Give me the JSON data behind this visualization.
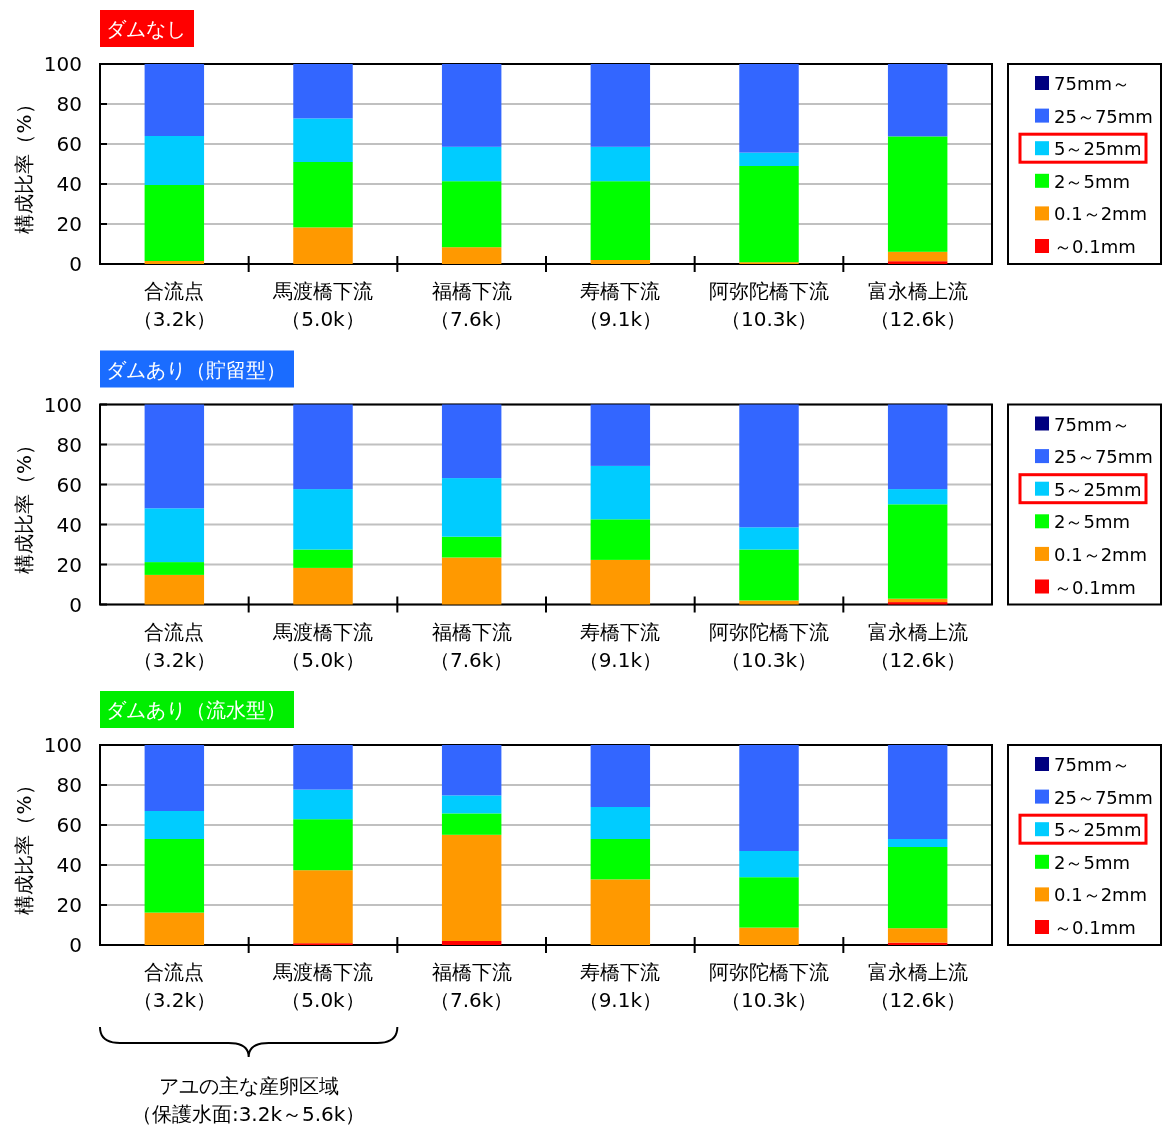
{
  "chart_data": [
    {
      "type": "bar",
      "title": "ダムなし",
      "ylabel": "構成比率（%）",
      "stacked": true,
      "ylim": [
        0,
        100
      ],
      "yticks": [
        0,
        20,
        40,
        60,
        80,
        100
      ],
      "grid": "y",
      "legend": "right",
      "categories": [
        "合流点（3.2k）",
        "馬渡橋下流（5.0k）",
        "福橋下流（7.6k）",
        "寿橋下流（9.1k）",
        "阿弥陀橋下流（10.3k）",
        "富永橋上流（12.6k）"
      ],
      "series": [
        {
          "name": "～0.1mm",
          "color": "#ff0000",
          "values": [
            0,
            0,
            0,
            0,
            0,
            1.4
          ]
        },
        {
          "name": "0.1～2mm",
          "color": "#ff9900",
          "values": [
            1.5,
            18.3,
            8.4,
            2,
            0.9,
            4.7
          ]
        },
        {
          "name": "2～5mm",
          "color": "#00ff00",
          "values": [
            38,
            32.7,
            33,
            39.4,
            48.1,
            57.7
          ]
        },
        {
          "name": "5～25mm",
          "color": "#00ccff",
          "values": [
            24.5,
            21.8,
            17.2,
            17.2,
            6.7,
            0
          ]
        },
        {
          "name": "25～75mm",
          "color": "#3366ff",
          "values": [
            36,
            27.2,
            41.4,
            41.4,
            44.3,
            36.2
          ]
        },
        {
          "name": "75mm～",
          "color": "#000080",
          "values": [
            0,
            0,
            0,
            0,
            0,
            0
          ]
        }
      ]
    },
    {
      "type": "bar",
      "title": "ダムあり（貯留型）",
      "ylabel": "構成比率（%）",
      "stacked": true,
      "ylim": [
        0,
        100
      ],
      "yticks": [
        0,
        20,
        40,
        60,
        80,
        100
      ],
      "grid": "y",
      "legend": "right",
      "categories": [
        "合流点（3.2k）",
        "馬渡橋下流（5.0k）",
        "福橋下流（7.6k）",
        "寿橋下流（9.1k）",
        "阿弥陀橋下流（10.3k）",
        "富永橋上流（12.6k）"
      ],
      "series": [
        {
          "name": "～0.1mm",
          "color": "#ff0000",
          "values": [
            0,
            0,
            0,
            0,
            0,
            1.2
          ]
        },
        {
          "name": "0.1～2mm",
          "color": "#ff9900",
          "values": [
            14.8,
            18.3,
            23.5,
            22.3,
            2,
            1.7
          ]
        },
        {
          "name": "2～5mm",
          "color": "#00ff00",
          "values": [
            6.4,
            9.2,
            10.4,
            20.3,
            25.5,
            47.2
          ]
        },
        {
          "name": "5～25mm",
          "color": "#00ccff",
          "values": [
            26.9,
            30.2,
            29.3,
            26.7,
            11.1,
            7.6
          ]
        },
        {
          "name": "25～75mm",
          "color": "#3366ff",
          "values": [
            51.9,
            42.3,
            36.8,
            30.7,
            61.4,
            42.3
          ]
        },
        {
          "name": "75mm～",
          "color": "#000080",
          "values": [
            0,
            0,
            0,
            0,
            0,
            0
          ]
        }
      ]
    },
    {
      "type": "bar",
      "title": "ダムあり（流水型）",
      "ylabel": "構成比率（%）",
      "stacked": true,
      "ylim": [
        0,
        100
      ],
      "yticks": [
        0,
        20,
        40,
        60,
        80,
        100
      ],
      "grid": "y",
      "legend": "right",
      "categories": [
        "合流点（3.2k）",
        "馬渡橋下流（5.0k）",
        "福橋下流（7.6k）",
        "寿橋下流（9.1k）",
        "阿弥陀橋下流（10.3k）",
        "富永橋上流（12.6k）"
      ],
      "annotations": [
        "アユの主な産卵区域（保護水面:3.2k～5.6k）"
      ],
      "series": [
        {
          "name": "～0.1mm",
          "color": "#ff0000",
          "values": [
            0,
            0.9,
            2,
            0,
            0,
            1.2
          ]
        },
        {
          "name": "0.1～2mm",
          "color": "#ff9900",
          "values": [
            16.2,
            36.5,
            53.1,
            32.8,
            8.7,
            7.2
          ]
        },
        {
          "name": "2～5mm",
          "color": "#00ff00",
          "values": [
            36.8,
            25.5,
            10.7,
            20.2,
            25.2,
            40.6
          ]
        },
        {
          "name": "5～25mm",
          "color": "#00ccff",
          "values": [
            14,
            14.8,
            9,
            16,
            13.1,
            4
          ]
        },
        {
          "name": "25～75mm",
          "color": "#3366ff",
          "values": [
            33,
            22.3,
            25.2,
            31,
            53,
            47
          ]
        },
        {
          "name": "75mm～",
          "color": "#000080",
          "values": [
            0,
            0,
            0,
            0,
            0,
            0
          ]
        }
      ]
    }
  ]
}
